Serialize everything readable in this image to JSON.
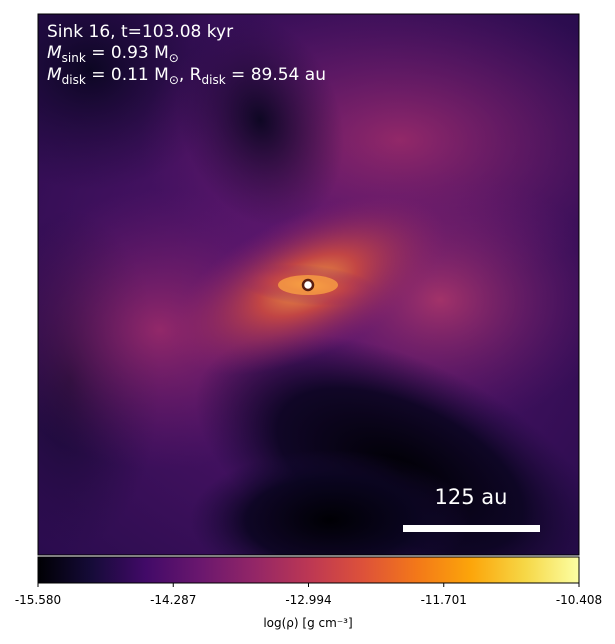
{
  "chart_data": {
    "type": "heatmap",
    "title": "",
    "annotations": {
      "line1": "Sink 16, t=103.08 kyr",
      "msink_symbol": "M",
      "msink_sub": "sink",
      "msink_value": " = 0.93 M",
      "msink_unit_sub": "⊙",
      "mdisk_symbol": "M",
      "mdisk_sub": "disk",
      "mdisk_value": " = 0.11 M",
      "mdisk_unit_sub": "⊙",
      "rdisk_symbol": ", R",
      "rdisk_sub": "disk",
      "rdisk_value": " = 89.54 au"
    },
    "scale_bar": {
      "label": "125 au",
      "length_au": 125
    },
    "sink_marker": {
      "fill": "#ffffff",
      "edge": "#5a1e10"
    },
    "colorbar": {
      "colormap": "inferno",
      "label": "log(ρ) [g cm⁻³]",
      "vmin": -15.58,
      "vmax": -10.408,
      "ticks": [
        "-15.580",
        "-14.287",
        "-12.994",
        "-11.701",
        "-10.408"
      ]
    }
  }
}
